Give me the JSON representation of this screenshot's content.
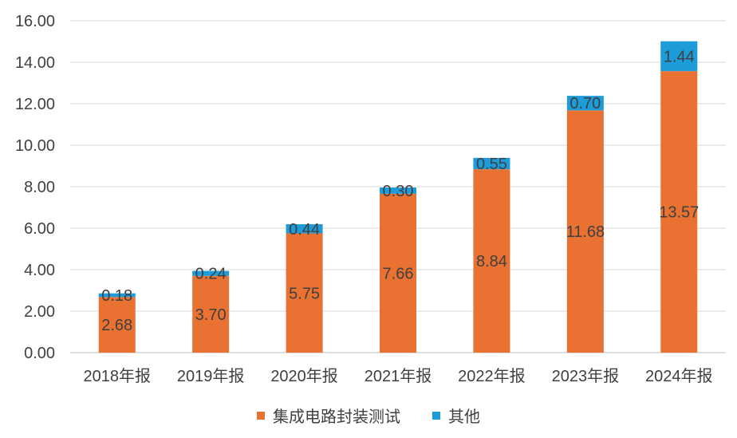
{
  "colors": {
    "series_0": "#E97132",
    "series_1": "#1C9CD8",
    "grid": "#D9D9D9",
    "axis": "#BFBFBF",
    "text": "#404040"
  },
  "chart_data": {
    "type": "bar",
    "stacked": true,
    "categories": [
      "2018年报",
      "2019年报",
      "2020年报",
      "2021年报",
      "2022年报",
      "2023年报",
      "2024年报"
    ],
    "series": [
      {
        "name": "集成电路封装测试",
        "values": [
          2.68,
          3.7,
          5.75,
          7.66,
          8.84,
          11.68,
          13.57
        ],
        "labels": [
          "2.68",
          "3.70",
          "5.75",
          "7.66",
          "8.84",
          "11.68",
          "13.57"
        ]
      },
      {
        "name": "其他",
        "values": [
          0.18,
          0.24,
          0.44,
          0.3,
          0.55,
          0.7,
          1.44
        ],
        "labels": [
          "0.18",
          "0.24",
          "0.44",
          "0.30",
          "0.55",
          "0.70",
          "1.44"
        ]
      }
    ],
    "yticks": [
      "0.00",
      "2.00",
      "4.00",
      "6.00",
      "8.00",
      "10.00",
      "12.00",
      "14.00",
      "16.00"
    ],
    "ylim": [
      0,
      16
    ],
    "grid": true,
    "legend_position": "bottom"
  }
}
